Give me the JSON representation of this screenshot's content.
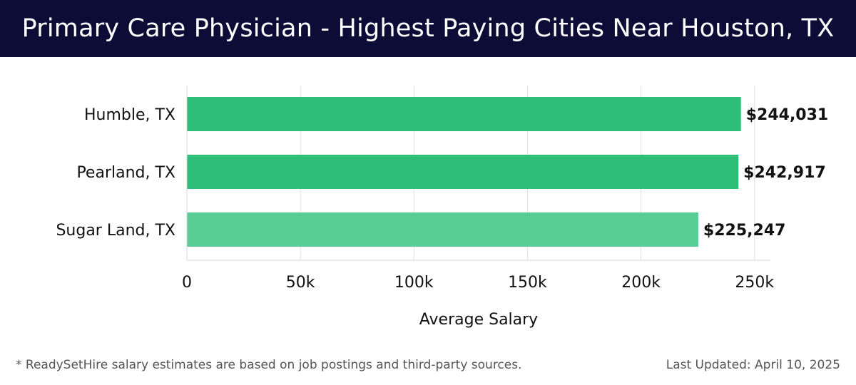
{
  "header": {
    "title": "Primary Care Physician - Highest Paying Cities Near Houston, TX"
  },
  "footer": {
    "disclaimer": "* ReadySetHire salary estimates are based on job postings and third-party sources.",
    "updated": "Last Updated: April 10, 2025"
  },
  "chart_data": {
    "type": "bar",
    "orientation": "horizontal",
    "categories": [
      "Humble, TX",
      "Pearland, TX",
      "Sugar Land, TX"
    ],
    "values": [
      244031,
      242917,
      225247
    ],
    "value_labels": [
      "$244,031",
      "$242,917",
      "$225,247"
    ],
    "xlabel": "Average Salary",
    "ylabel": "",
    "xlim": [
      0,
      257000
    ],
    "xticks": [
      0,
      50000,
      100000,
      150000,
      200000,
      250000
    ],
    "xtick_labels": [
      "0",
      "50k",
      "100k",
      "150k",
      "200k",
      "250k"
    ],
    "grid": "vertical",
    "colors": [
      "#2dbf78",
      "#2dbf78",
      "#58cd96"
    ]
  }
}
